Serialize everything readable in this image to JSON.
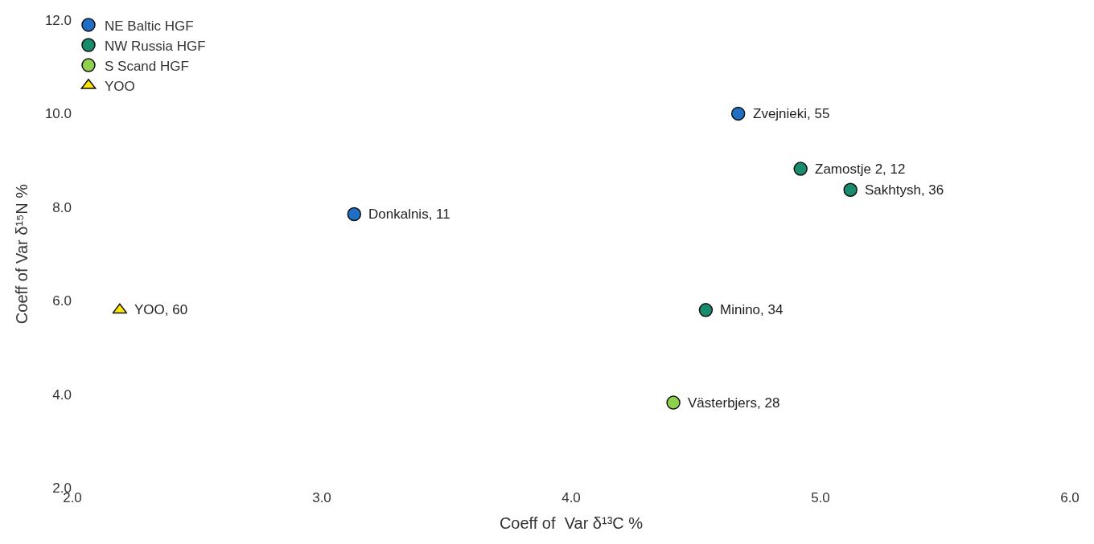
{
  "chart_data": {
    "type": "scatter",
    "xlabel": "Coeff of  Var δ¹³C %",
    "ylabel": "Coeff of Var δ¹⁵N %",
    "series": [
      {
        "name": "NE Baltic HGF",
        "color": "#1f6fc5",
        "marker": "circle",
        "x": [
          4.67,
          3.13
        ],
        "values": [
          10.0,
          7.85
        ]
      },
      {
        "name": "NW Russia HGF",
        "color": "#1a8c6e",
        "marker": "circle",
        "x": [
          4.92,
          5.12,
          4.54
        ],
        "values": [
          8.82,
          8.37,
          5.8
        ]
      },
      {
        "name": "S Scand HGF",
        "color": "#8fd14f",
        "marker": "circle",
        "x": [
          4.41
        ],
        "values": [
          3.82
        ]
      },
      {
        "name": "YOO",
        "color": "#ffe600",
        "marker": "triangle",
        "x": [
          2.19
        ],
        "values": [
          5.8
        ]
      }
    ],
    "annotations": [
      {
        "text": "Zvejnieki, 55",
        "x": 4.67,
        "y": 10.0
      },
      {
        "text": "Donkalnis, 11",
        "x": 3.13,
        "y": 7.85
      },
      {
        "text": "Zamostje 2, 12",
        "x": 4.92,
        "y": 8.82
      },
      {
        "text": "Sakhtysh, 36",
        "x": 5.12,
        "y": 8.37
      },
      {
        "text": "Minino, 34",
        "x": 4.54,
        "y": 5.8
      },
      {
        "text": "Västerbjers, 28",
        "x": 4.41,
        "y": 3.82
      },
      {
        "text": "YOO, 60",
        "x": 2.19,
        "y": 5.8
      }
    ],
    "xlim": [
      2.0,
      6.0
    ],
    "xticks": [
      {
        "value": 2,
        "label": "2.0"
      },
      {
        "value": 3,
        "label": "3.0"
      },
      {
        "value": 4,
        "label": "4.0"
      },
      {
        "value": 5,
        "label": "5.0"
      },
      {
        "value": 6,
        "label": "6.0"
      }
    ],
    "ylim": [
      2.0,
      12.0
    ],
    "yticks": [
      {
        "value": 2,
        "label": "2.0"
      },
      {
        "value": 4,
        "label": "4.0"
      },
      {
        "value": 6,
        "label": "6.0"
      },
      {
        "value": 8,
        "label": "8.0"
      },
      {
        "value": 10,
        "label": "10.0"
      },
      {
        "value": 12,
        "label": "12.0"
      }
    ],
    "legend": "top left"
  }
}
